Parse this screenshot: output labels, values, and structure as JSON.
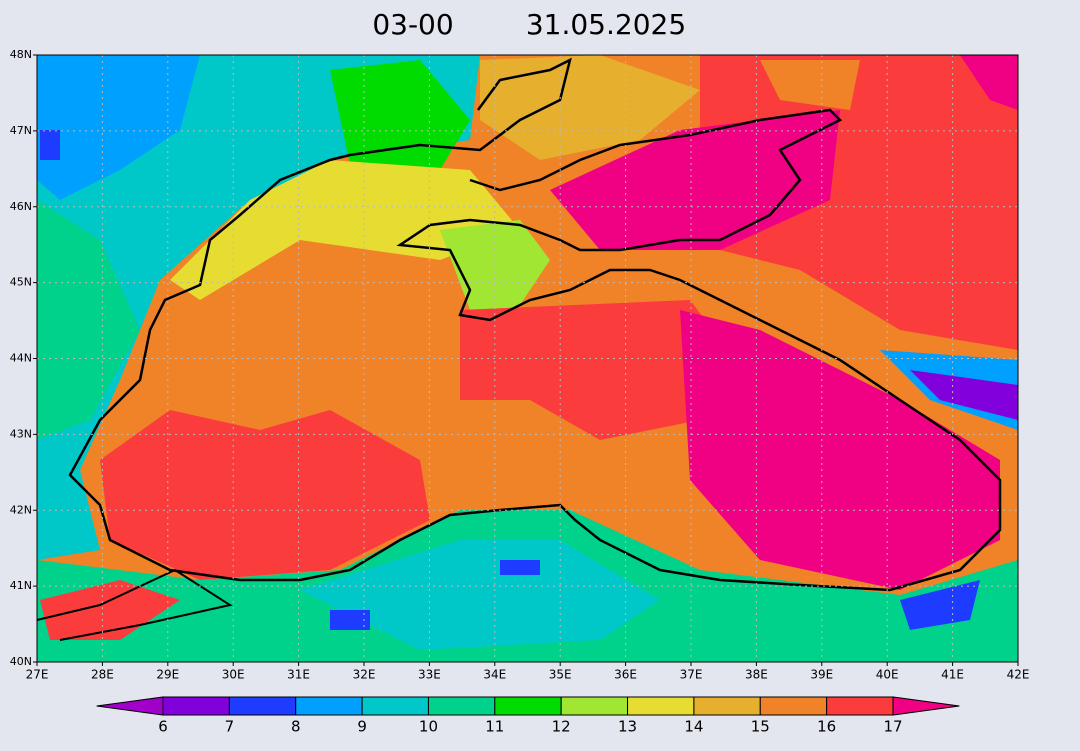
{
  "title": {
    "time": "03-00",
    "date": "31.05.2025"
  },
  "map": {
    "xlim": [
      27,
      42
    ],
    "ylim": [
      40,
      48
    ],
    "xticks": [
      {
        "value": 27,
        "label": "27E"
      },
      {
        "value": 28,
        "label": "28E"
      },
      {
        "value": 29,
        "label": "29E"
      },
      {
        "value": 30,
        "label": "30E"
      },
      {
        "value": 31,
        "label": "31E"
      },
      {
        "value": 32,
        "label": "32E"
      },
      {
        "value": 33,
        "label": "33E"
      },
      {
        "value": 34,
        "label": "34E"
      },
      {
        "value": 35,
        "label": "35E"
      },
      {
        "value": 36,
        "label": "36E"
      },
      {
        "value": 37,
        "label": "37E"
      },
      {
        "value": 38,
        "label": "38E"
      },
      {
        "value": 39,
        "label": "39E"
      },
      {
        "value": 40,
        "label": "40E"
      },
      {
        "value": 41,
        "label": "41E"
      },
      {
        "value": 42,
        "label": "42E"
      }
    ],
    "yticks": [
      {
        "value": 40,
        "label": "40N"
      },
      {
        "value": 41,
        "label": "41N"
      },
      {
        "value": 42,
        "label": "42N"
      },
      {
        "value": 43,
        "label": "43N"
      },
      {
        "value": 44,
        "label": "44N"
      },
      {
        "value": 45,
        "label": "45N"
      },
      {
        "value": 46,
        "label": "46N"
      },
      {
        "value": 47,
        "label": "47N"
      },
      {
        "value": 48,
        "label": "48N"
      }
    ],
    "grid": true
  },
  "colorbar": {
    "ticks": [
      6,
      7,
      8,
      9,
      10,
      11,
      12,
      13,
      14,
      15,
      16,
      17
    ],
    "colors": [
      "#a000c8",
      "#8200dc",
      "#1e3cff",
      "#00a0ff",
      "#00c8c8",
      "#00d28c",
      "#00dc00",
      "#a0e632",
      "#e6dc32",
      "#e6af2d",
      "#f08228",
      "#fa3c3c",
      "#f00082"
    ]
  }
}
